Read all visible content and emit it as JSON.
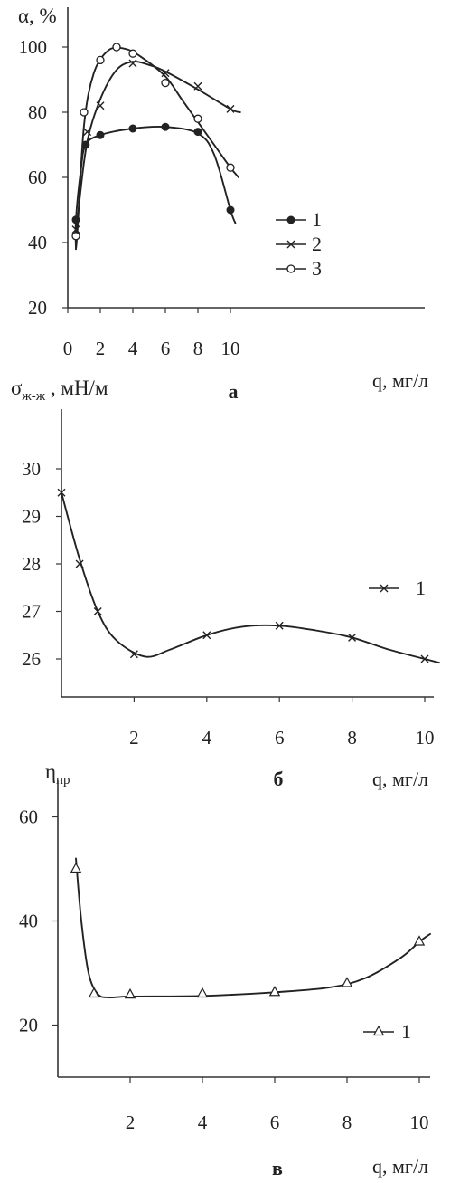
{
  "chart_data": [
    {
      "type": "line",
      "panel_label": "а",
      "ylabel": "α, %",
      "xlabel": "q, мг/л",
      "xlim": [
        0,
        12
      ],
      "ylim": [
        20,
        105
      ],
      "x_ticks": [
        0,
        2,
        4,
        6,
        8,
        10
      ],
      "y_ticks": [
        20,
        40,
        60,
        80,
        100
      ],
      "grid": false,
      "legend_position": "right",
      "series": [
        {
          "name": "1",
          "marker": "filled-circle",
          "x": [
            0.5,
            1.1,
            2,
            4,
            6,
            8,
            10
          ],
          "y": [
            47,
            70,
            73,
            75,
            75.5,
            74,
            50
          ],
          "curve": [
            [
              0.5,
              38
            ],
            [
              0.5,
              47
            ],
            [
              0.8,
              62
            ],
            [
              1.1,
              70
            ],
            [
              2,
              73
            ],
            [
              4,
              75
            ],
            [
              6,
              75.5
            ],
            [
              8,
              73.5
            ],
            [
              9,
              67
            ],
            [
              10,
              50
            ],
            [
              10.3,
              46
            ]
          ]
        },
        {
          "name": "2",
          "marker": "x",
          "x": [
            0.5,
            1.2,
            2,
            4,
            6,
            8,
            10
          ],
          "y": [
            44,
            74,
            82,
            95,
            92,
            88,
            81
          ],
          "curve": [
            [
              0.5,
              40
            ],
            [
              0.7,
              52
            ],
            [
              1.2,
              71
            ],
            [
              2,
              84
            ],
            [
              3,
              93
            ],
            [
              4,
              95.5
            ],
            [
              5,
              94.5
            ],
            [
              6,
              92.5
            ],
            [
              8,
              87
            ],
            [
              10,
              81
            ],
            [
              10.6,
              80
            ]
          ]
        },
        {
          "name": "3",
          "marker": "open-circle",
          "x": [
            0.5,
            1,
            2,
            3,
            4,
            6,
            8,
            10
          ],
          "y": [
            42,
            80,
            96,
            100,
            98,
            89,
            78,
            63
          ],
          "curve": [
            [
              0.5,
              38
            ],
            [
              0.6,
              44
            ],
            [
              1,
              76
            ],
            [
              1.6,
              92
            ],
            [
              2.5,
              99
            ],
            [
              3.5,
              99.5
            ],
            [
              4.5,
              97
            ],
            [
              6,
              91
            ],
            [
              7,
              84
            ],
            [
              8,
              77
            ],
            [
              9,
              70
            ],
            [
              10,
              63
            ],
            [
              10.5,
              60
            ]
          ]
        }
      ]
    },
    {
      "type": "line",
      "panel_label": "б",
      "ylabel": "σж-ж , мН/м",
      "xlabel": "q, мг/л",
      "xlim": [
        0,
        10.5
      ],
      "ylim": [
        25.2,
        30.7
      ],
      "x_ticks": [
        2,
        4,
        6,
        8,
        10
      ],
      "y_ticks": [
        26,
        27,
        28,
        29,
        30
      ],
      "grid": false,
      "legend_position": "right",
      "series": [
        {
          "name": "1",
          "marker": "x",
          "x": [
            0,
            0.5,
            1,
            2,
            4,
            6,
            8,
            10
          ],
          "y": [
            29.5,
            28,
            27,
            26.1,
            26.5,
            26.7,
            26.45,
            26
          ],
          "curve": [
            [
              0,
              29.5
            ],
            [
              0.5,
              28.1
            ],
            [
              1,
              27
            ],
            [
              1.5,
              26.4
            ],
            [
              2.3,
              26.05
            ],
            [
              3,
              26.2
            ],
            [
              4,
              26.5
            ],
            [
              5,
              26.68
            ],
            [
              6,
              26.7
            ],
            [
              7,
              26.6
            ],
            [
              8,
              26.45
            ],
            [
              9,
              26.2
            ],
            [
              10,
              26
            ],
            [
              10.4,
              25.92
            ]
          ]
        }
      ]
    },
    {
      "type": "line",
      "panel_label": "в",
      "ylabel": "ηпр",
      "xlabel": "q, мг/л",
      "xlim": [
        0,
        10.5
      ],
      "ylim": [
        10,
        62
      ],
      "x_ticks": [
        2,
        4,
        6,
        8,
        10
      ],
      "y_ticks": [
        20,
        40,
        60
      ],
      "grid": false,
      "legend_position": "right",
      "series": [
        {
          "name": "1",
          "marker": "open-triangle",
          "x": [
            0.5,
            1,
            2,
            4,
            6,
            8,
            10
          ],
          "y": [
            50,
            26,
            25.8,
            26,
            26.3,
            28,
            36
          ],
          "curve": [
            [
              0.5,
              52
            ],
            [
              0.65,
              40
            ],
            [
              0.85,
              30
            ],
            [
              1.1,
              26
            ],
            [
              1.4,
              25.3
            ],
            [
              2,
              25.5
            ],
            [
              4,
              25.6
            ],
            [
              6,
              26.3
            ],
            [
              7.5,
              27.2
            ],
            [
              8.5,
              29
            ],
            [
              9.5,
              33
            ],
            [
              10,
              36
            ],
            [
              10.3,
              37.5
            ]
          ]
        }
      ]
    }
  ]
}
